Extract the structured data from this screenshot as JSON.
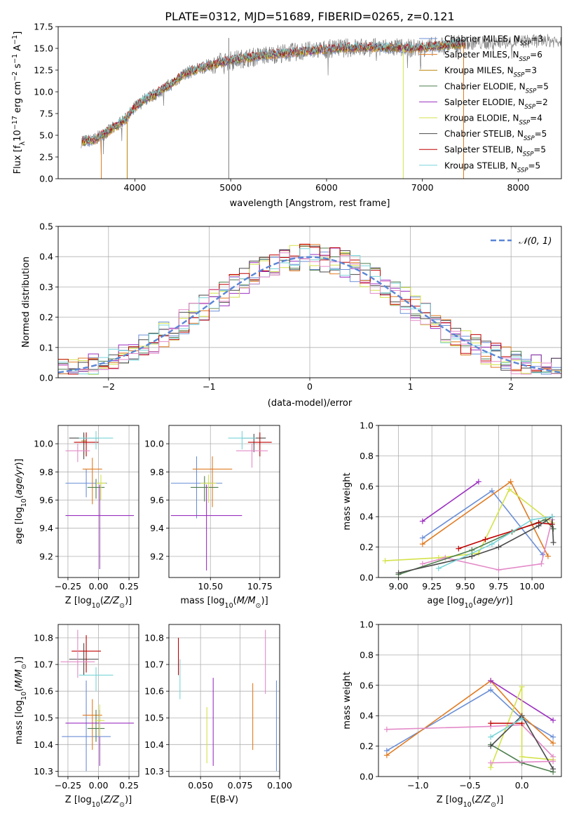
{
  "figure_title": "PLATE=0312, MJD=51689, FIBERID=0265, z=0.121",
  "colors": [
    "#6b8fd6",
    "#e07b22",
    "#b8860b",
    "#4f7f4f",
    "#9b30c0",
    "#d4e24a",
    "#4a4a4a",
    "#c00000",
    "#79d4d8"
  ],
  "chart_data": [
    {
      "id": "spectrum",
      "type": "line",
      "title": "PLATE=0312, MJD=51689, FIBERID=0265, z=0.121",
      "xlabel": "wavelength [Angstrom, rest frame]",
      "ylabel": "Flux [f_λ10^-17 erg cm^-2 s^-1 A^-1]",
      "xlim": [
        3200,
        8450
      ],
      "ylim": [
        0,
        17.5
      ],
      "xticks": [
        4000,
        5000,
        6000,
        7000,
        8000
      ],
      "yticks": [
        0.0,
        2.5,
        5.0,
        7.5,
        10.0,
        12.5,
        15.0,
        17.5
      ],
      "grid": false,
      "legend_position": "upper right",
      "continuum": {
        "x": [
          3440,
          3560,
          3700,
          3800,
          3900,
          4000,
          4100,
          4200,
          4300,
          4400,
          4500,
          4700,
          4900,
          5100,
          5300,
          5500,
          5700,
          5900,
          6100,
          6300,
          6500,
          6700,
          6900,
          7100,
          7300,
          7500,
          7600,
          8000,
          8450
        ],
        "y": [
          4.3,
          4.4,
          5.3,
          6.0,
          6.8,
          8.2,
          9.1,
          9.6,
          10.4,
          11.0,
          12.0,
          12.8,
          13.4,
          13.8,
          14.1,
          14.4,
          14.6,
          14.8,
          15.0,
          15.1,
          15.1,
          15.1,
          15.0,
          15.2,
          15.4,
          15.6,
          15.6,
          15.8,
          15.9
        ],
        "noise_amplitude": 1.6
      },
      "model_x_range": [
        3450,
        7450
      ],
      "spectrum_x_range": [
        3440,
        8450
      ],
      "series": [
        {
          "name": "Chabrier MILES, N_SSP=3",
          "label_main": "Chabrier MILES, N",
          "label_sub": "SSP",
          "label_tail": "=3",
          "color": "#6b8fd6"
        },
        {
          "name": "Salpeter MILES, N_SSP=6",
          "label_main": "Salpeter MILES, N",
          "label_sub": "SSP",
          "label_tail": "=6",
          "color": "#e07b22"
        },
        {
          "name": "Kroupa MILES, N_SSP=3",
          "label_main": "Kroupa MILES, N",
          "label_sub": "SSP",
          "label_tail": "=3",
          "color": "#b8860b"
        },
        {
          "name": "Chabrier ELODIE, N_SSP=5",
          "label_main": "Chabrier ELODIE, N",
          "label_sub": "SSP",
          "label_tail": "=5",
          "color": "#4f7f4f"
        },
        {
          "name": "Salpeter ELODIE, N_SSP=2",
          "label_main": "Salpeter ELODIE, N",
          "label_sub": "SSP",
          "label_tail": "=2",
          "color": "#9b30c0"
        },
        {
          "name": "Kroupa ELODIE, N_SSP=4",
          "label_main": "Kroupa ELODIE, N",
          "label_sub": "SSP",
          "label_tail": "=4",
          "color": "#d4e24a"
        },
        {
          "name": "Chabrier STELIB, N_SSP=5",
          "label_main": "Chabrier STELIB, N",
          "label_sub": "SSP",
          "label_tail": "=5",
          "color": "#4a4a4a"
        },
        {
          "name": "Salpeter STELIB, N_SSP=5",
          "label_main": "Salpeter STELIB, N",
          "label_sub": "SSP",
          "label_tail": "=5",
          "color": "#c00000"
        },
        {
          "name": "Kroupa STELIB, N_SSP=5",
          "label_main": "Kroupa STELIB, N",
          "label_sub": "SSP",
          "label_tail": "=5",
          "color": "#79d4d8"
        }
      ],
      "vertical_spikes": [
        {
          "x": 3650,
          "color": "#e07b22",
          "y": [
            0,
            4.5
          ]
        },
        {
          "x": 3920,
          "color": "#b8860b",
          "y": [
            0,
            6.5
          ]
        },
        {
          "x": 4980,
          "color": "#808080",
          "y": [
            0,
            16.2
          ]
        },
        {
          "x": 6800,
          "color": "#d4e24a",
          "y": [
            0,
            15.0
          ]
        },
        {
          "x": 7430,
          "color": "#e07b22",
          "y": [
            0,
            15.5
          ]
        }
      ]
    },
    {
      "id": "residuals",
      "type": "histogram",
      "xlabel": "(data-model)/error",
      "ylabel": "Normed distribution",
      "xlim": [
        -2.5,
        2.5
      ],
      "ylim": [
        0,
        0.5
      ],
      "xticks": [
        -2,
        -1,
        0,
        1,
        2
      ],
      "xtick_labels": [
        "−2",
        "−1",
        "0",
        "1",
        "2"
      ],
      "yticks": [
        0.0,
        0.1,
        0.2,
        0.3,
        0.4,
        0.5
      ],
      "grid": true,
      "legend_position": "upper right",
      "gaussian_label": "𝒩(0, 1)",
      "gaussian_color": "#5a86d6",
      "bin_width": 0.1,
      "bin_start": -2.5,
      "num_bins": 50,
      "hist_color_order": [
        "#6b8fd6",
        "#e07b22",
        "#4f7f4f",
        "#9b30c0",
        "#d4e24a",
        "#4a4a4a",
        "#c00000",
        "#79d4d8",
        "#e38ac8"
      ]
    },
    {
      "id": "age_vs_Z",
      "type": "errorbar",
      "xlabel": "Z [log10(Z/Z⊙)]",
      "ylabel": "age [log10(age/yr)]",
      "xlim": [
        -0.33,
        0.33
      ],
      "ylim": [
        9.05,
        10.13
      ],
      "xticks": [
        -0.25,
        0.0,
        0.25
      ],
      "xtick_labels": [
        "−0.25",
        "0.00",
        "0.25"
      ],
      "yticks": [
        9.2,
        9.4,
        9.6,
        9.8,
        10.0
      ],
      "grid": true,
      "points": [
        {
          "x": -0.1,
          "xerr": 0.17,
          "y": 9.72,
          "yerr": [
            0.1,
            0.1
          ],
          "color": "#6b8fd6"
        },
        {
          "x": -0.05,
          "xerr": 0.08,
          "y": 9.82,
          "yerr": [
            0.25,
            0.08
          ],
          "color": "#e07b22"
        },
        {
          "x": -0.12,
          "xerr": 0.02,
          "y": 10.02,
          "yerr": [
            0.1,
            0.05
          ],
          "color": "#b8860b"
        },
        {
          "x": -0.02,
          "xerr": 0.07,
          "y": 9.69,
          "yerr": [
            0.08,
            0.06
          ],
          "color": "#4f7f4f"
        },
        {
          "x": 0.01,
          "xerr": 0.28,
          "y": 9.49,
          "yerr": [
            0.38,
            0.22
          ],
          "color": "#9b30c0"
        },
        {
          "x": 0.02,
          "xerr": 0.04,
          "y": 9.72,
          "yerr": [
            0.12,
            0.06
          ],
          "color": "#d4e24a"
        },
        {
          "x": -0.12,
          "xerr": 0.12,
          "y": 10.04,
          "yerr": [
            0.15,
            0.04
          ],
          "color": "#4a4a4a"
        },
        {
          "x": -0.1,
          "xerr": 0.1,
          "y": 10.01,
          "yerr": [
            0.1,
            0.07
          ],
          "color": "#c00000"
        },
        {
          "x": -0.02,
          "xerr": 0.14,
          "y": 10.04,
          "yerr": [
            0.08,
            0.05
          ],
          "color": "#79d4d8"
        },
        {
          "x": -0.17,
          "xerr": 0.1,
          "y": 9.95,
          "yerr": [
            0.08,
            0.05
          ],
          "color": "#e38ac8"
        }
      ]
    },
    {
      "id": "age_vs_mass",
      "type": "errorbar",
      "xlabel": "mass [log10(M/M⊙)]",
      "xlim": [
        10.29,
        10.85
      ],
      "ylim": [
        9.05,
        10.13
      ],
      "xticks": [
        10.5,
        10.75
      ],
      "xtick_labels": [
        "10.50",
        "10.75"
      ],
      "yticks": [
        9.2,
        9.4,
        9.6,
        9.8,
        10.0
      ],
      "grid": true,
      "points": [
        {
          "x": 10.43,
          "xerr": 0.13,
          "y": 9.72,
          "yerr": [
            0.25,
            0.19
          ],
          "color": "#6b8fd6"
        },
        {
          "x": 10.51,
          "xerr": 0.1,
          "y": 9.82,
          "yerr": [
            0.27,
            0.09
          ],
          "color": "#e07b22"
        },
        {
          "x": 10.47,
          "xerr": 0.07,
          "y": 9.69,
          "yerr": [
            0.1,
            0.08
          ],
          "color": "#4f7f4f"
        },
        {
          "x": 10.48,
          "xerr": 0.18,
          "y": 9.49,
          "yerr": [
            0.39,
            0.22
          ],
          "color": "#9b30c0"
        },
        {
          "x": 10.49,
          "xerr": 0.04,
          "y": 9.72,
          "yerr": [
            0.14,
            0.06
          ],
          "color": "#d4e24a"
        },
        {
          "x": 10.72,
          "xerr": 0.06,
          "y": 10.04,
          "yerr": [
            0.1,
            0.03
          ],
          "color": "#4a4a4a"
        },
        {
          "x": 10.75,
          "xerr": 0.06,
          "y": 10.01,
          "yerr": [
            0.1,
            0.07
          ],
          "color": "#c00000"
        },
        {
          "x": 10.66,
          "xerr": 0.07,
          "y": 10.04,
          "yerr": [
            0.08,
            0.05
          ],
          "color": "#79d4d8"
        },
        {
          "x": 10.71,
          "xerr": 0.08,
          "y": 9.95,
          "yerr": [
            0.12,
            0.05
          ],
          "color": "#e38ac8"
        }
      ]
    },
    {
      "id": "mass_weight_vs_age",
      "type": "line",
      "xlabel": "age [log10(age/yr)]",
      "ylabel": "mass weight",
      "xlim": [
        8.85,
        10.22
      ],
      "ylim": [
        0,
        1.0
      ],
      "xticks": [
        9.0,
        9.25,
        9.5,
        9.75,
        10.0
      ],
      "xtick_labels": [
        "9.00",
        "9.25",
        "9.50",
        "9.75",
        "10.00"
      ],
      "yticks": [
        0.0,
        0.2,
        0.4,
        0.6,
        0.8,
        1.0
      ],
      "grid": true,
      "series": [
        {
          "color": "#9b30c0",
          "x": [
            9.18,
            9.6
          ],
          "y": [
            0.37,
            0.63
          ]
        },
        {
          "color": "#6b8fd6",
          "x": [
            9.18,
            9.7,
            10.08
          ],
          "y": [
            0.26,
            0.57,
            0.15
          ]
        },
        {
          "color": "#e07b22",
          "x": [
            9.18,
            9.84,
            10.12
          ],
          "y": [
            0.22,
            0.63,
            0.14
          ]
        },
        {
          "color": "#d4e24a",
          "x": [
            8.9,
            9.3,
            9.6,
            9.83,
            10.15
          ],
          "y": [
            0.11,
            0.13,
            0.16,
            0.58,
            0.36
          ]
        },
        {
          "color": "#e38ac8",
          "x": [
            9.18,
            9.35,
            9.75,
            10.07,
            10.15
          ],
          "y": [
            0.09,
            0.13,
            0.05,
            0.09,
            0.38
          ]
        },
        {
          "color": "#4f7f4f",
          "x": [
            9.0,
            9.55,
            9.85,
            10.1,
            10.16
          ],
          "y": [
            0.02,
            0.18,
            0.3,
            0.38,
            0.32
          ]
        },
        {
          "color": "#c00000",
          "x": [
            9.45,
            9.65,
            10.05,
            10.15
          ],
          "y": [
            0.19,
            0.25,
            0.36,
            0.35
          ]
        },
        {
          "color": "#4a4a4a",
          "x": [
            9.0,
            9.55,
            9.75,
            10.05,
            10.15,
            10.16
          ],
          "y": [
            0.03,
            0.14,
            0.2,
            0.34,
            0.4,
            0.23
          ]
        },
        {
          "color": "#79d4d8",
          "x": [
            9.3,
            9.7,
            10.0,
            10.15
          ],
          "y": [
            0.06,
            0.22,
            0.38,
            0.4
          ]
        }
      ]
    },
    {
      "id": "mass_vs_Z",
      "type": "errorbar",
      "xlabel": "Z [log10(Z/Z⊙)]",
      "ylabel": "mass [log10(M/M⊙)]",
      "xlim": [
        -0.33,
        0.33
      ],
      "ylim": [
        10.28,
        10.85
      ],
      "xticks": [
        -0.25,
        0.0,
        0.25
      ],
      "xtick_labels": [
        "−0.25",
        "0.00",
        "0.25"
      ],
      "yticks": [
        10.3,
        10.4,
        10.5,
        10.6,
        10.7,
        10.8
      ],
      "grid": true,
      "points": [
        {
          "x": -0.1,
          "xerr": 0.2,
          "y": 10.43,
          "yerr": [
            0.13,
            0.21
          ],
          "color": "#6b8fd6"
        },
        {
          "x": -0.05,
          "xerr": 0.08,
          "y": 10.51,
          "yerr": [
            0.13,
            0.06
          ],
          "color": "#e07b22"
        },
        {
          "x": -0.02,
          "xerr": 0.07,
          "y": 10.46,
          "yerr": [
            0.05,
            0.07
          ],
          "color": "#4f7f4f"
        },
        {
          "x": 0.01,
          "xerr": 0.28,
          "y": 10.48,
          "yerr": [
            0.16,
            0.05
          ],
          "color": "#9b30c0"
        },
        {
          "x": 0.01,
          "xerr": 0.04,
          "y": 10.49,
          "yerr": [
            0.06,
            0.06
          ],
          "color": "#d4e24a"
        },
        {
          "x": -0.12,
          "xerr": 0.12,
          "y": 10.72,
          "yerr": [
            0.06,
            0.06
          ],
          "color": "#4a4a4a"
        },
        {
          "x": -0.1,
          "xerr": 0.12,
          "y": 10.75,
          "yerr": [
            0.08,
            0.06
          ],
          "color": "#c00000"
        },
        {
          "x": -0.02,
          "xerr": 0.14,
          "y": 10.66,
          "yerr": [
            0.06,
            0.03
          ],
          "color": "#79d4d8"
        },
        {
          "x": -0.17,
          "xerr": 0.14,
          "y": 10.71,
          "yerr": [
            0.06,
            0.12
          ],
          "color": "#e38ac8"
        }
      ]
    },
    {
      "id": "mass_vs_ebv",
      "type": "errorbar",
      "xlabel": "E(B-V)",
      "xlim": [
        0.03,
        0.1
      ],
      "ylim": [
        10.28,
        10.85
      ],
      "xticks": [
        0.05,
        0.075,
        0.1
      ],
      "xtick_labels": [
        "0.050",
        "0.075",
        "0.100"
      ],
      "yticks": [
        10.3,
        10.4,
        10.5,
        10.6,
        10.7,
        10.8
      ],
      "grid": true,
      "points": [
        {
          "x": 0.098,
          "y": 10.43,
          "yerr": [
            0.13,
            0.21
          ],
          "color": "#6b8fd6"
        },
        {
          "x": 0.083,
          "y": 10.51,
          "yerr": [
            0.13,
            0.12
          ],
          "color": "#e07b22"
        },
        {
          "x": 0.054,
          "y": 10.46,
          "yerr": [
            0.13,
            0.08
          ],
          "color": "#d4e24a"
        },
        {
          "x": 0.058,
          "y": 10.48,
          "yerr": [
            0.16,
            0.17
          ],
          "color": "#9b30c0"
        },
        {
          "x": 0.036,
          "y": 10.72,
          "yerr": [
            0.06,
            0.08
          ],
          "color": "#c00000"
        },
        {
          "x": 0.037,
          "y": 10.66,
          "yerr": [
            0.09,
            0.06
          ],
          "color": "#79d4d8"
        },
        {
          "x": 0.091,
          "y": 10.71,
          "yerr": [
            0.12,
            0.12
          ],
          "color": "#e38ac8"
        }
      ]
    },
    {
      "id": "mass_weight_vs_Z",
      "type": "line",
      "xlabel": "Z [log10(Z/Z⊙)]",
      "ylabel": "mass weight",
      "xlim": [
        -1.38,
        0.38
      ],
      "ylim": [
        0,
        1.0
      ],
      "xticks": [
        -1.0,
        -0.5,
        0.0
      ],
      "xtick_labels": [
        "−1.0",
        "−0.5",
        "0.0"
      ],
      "yticks": [
        0.0,
        0.2,
        0.4,
        0.6,
        0.8,
        1.0
      ],
      "grid": true,
      "series": [
        {
          "color": "#6b8fd6",
          "x": [
            -1.3,
            -0.3,
            0.0,
            0.3
          ],
          "y": [
            0.17,
            0.57,
            0.38,
            0.26
          ]
        },
        {
          "color": "#e07b22",
          "x": [
            -1.3,
            -0.3,
            0.0,
            0.3
          ],
          "y": [
            0.14,
            0.63,
            0.4,
            0.22
          ]
        },
        {
          "color": "#9b30c0",
          "x": [
            -0.3,
            0.3
          ],
          "y": [
            0.63,
            0.37
          ]
        },
        {
          "color": "#e38ac8",
          "x": [
            -1.3,
            -0.3,
            0.0,
            0.3
          ],
          "y": [
            0.31,
            0.33,
            0.34,
            0.13
          ]
        },
        {
          "color": "#d4e24a",
          "x": [
            -0.3,
            0.0,
            0.0,
            0.3
          ],
          "y": [
            0.06,
            0.59,
            0.13,
            0.11
          ]
        },
        {
          "color": "#4f7f4f",
          "x": [
            -0.3,
            0.0,
            0.3
          ],
          "y": [
            0.21,
            0.09,
            0.03
          ]
        },
        {
          "color": "#c00000",
          "x": [
            -0.3,
            0.0
          ],
          "y": [
            0.35,
            0.35
          ]
        },
        {
          "color": "#4a4a4a",
          "x": [
            -0.3,
            0.0,
            0.3
          ],
          "y": [
            0.2,
            0.4,
            0.05
          ]
        },
        {
          "color": "#79d4d8",
          "x": [
            -0.3,
            0.0
          ],
          "y": [
            0.26,
            0.38
          ]
        },
        {
          "color": "#e38ac8",
          "x": [
            -0.3,
            0.3
          ],
          "y": [
            0.09,
            0.1
          ]
        }
      ]
    }
  ]
}
